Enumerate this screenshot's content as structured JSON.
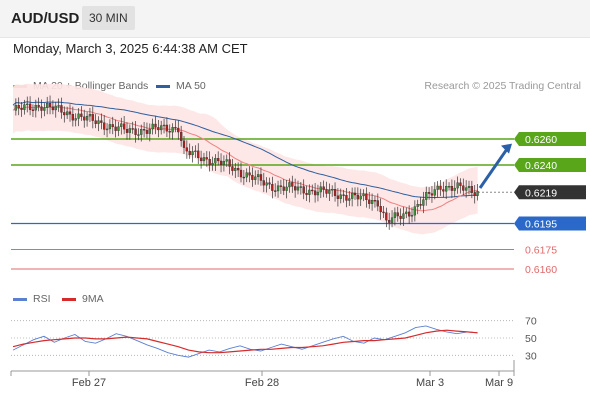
{
  "header": {
    "symbol": "AUD/USD",
    "timeframe": "30 MIN"
  },
  "datetime": "Monday, March 3, 2025 6:44:38 AM CET",
  "legend": {
    "ma20": {
      "label": "MA 20 + Bollinger Bands",
      "color": "#f08080"
    },
    "ma50": {
      "label": "MA 50",
      "color": "#2f5f9e"
    },
    "credit": "Research © 2025 Trading Central"
  },
  "rsi_legend": {
    "rsi": {
      "label": "RSI",
      "color": "#5b7fd1"
    },
    "ma9": {
      "label": "9MA",
      "color": "#d62b2b"
    }
  },
  "colors": {
    "resistance": "#5aa61a",
    "support": "#2a69c9",
    "minor_support": "#e06a6a",
    "current": "#333333",
    "arrow": "#2b5fa8",
    "candle_up": "#3d8b3d",
    "candle_down": "#b02020",
    "band_fill": "#fde4e4"
  },
  "chart_data": [
    {
      "type": "candlestick",
      "ylim": [
        0.615,
        0.629
      ],
      "levels": [
        {
          "value": 0.626,
          "label": "0.6260",
          "kind": "resistance"
        },
        {
          "value": 0.624,
          "label": "0.6240",
          "kind": "resistance"
        },
        {
          "value": 0.6219,
          "label": "0.6219",
          "kind": "current"
        },
        {
          "value": 0.6195,
          "label": "0.6195",
          "kind": "support"
        },
        {
          "value": 0.6175,
          "label": "0.6175",
          "kind": "minor_support"
        },
        {
          "value": 0.616,
          "label": "0.6160",
          "kind": "minor_support"
        }
      ],
      "x_labels": [
        "Feb 27",
        "Feb 28",
        "Mar 3",
        "Mar 9"
      ],
      "trend_arrow": {
        "from": 0.622,
        "to": 0.6258,
        "direction": "up"
      },
      "key_points": [
        {
          "i": 0,
          "close": 0.6282
        },
        {
          "i": 10,
          "close": 0.6286
        },
        {
          "i": 25,
          "close": 0.6276
        },
        {
          "i": 40,
          "close": 0.6266
        },
        {
          "i": 58,
          "close": 0.6269
        },
        {
          "i": 60,
          "close": 0.625
        },
        {
          "i": 75,
          "close": 0.624
        },
        {
          "i": 90,
          "close": 0.6224
        },
        {
          "i": 110,
          "close": 0.6219
        },
        {
          "i": 128,
          "close": 0.6212
        },
        {
          "i": 131,
          "close": 0.6196
        },
        {
          "i": 140,
          "close": 0.6205
        },
        {
          "i": 150,
          "close": 0.6224
        },
        {
          "i": 163,
          "close": 0.622
        }
      ]
    },
    {
      "type": "line",
      "title": "RSI",
      "ylim": [
        20,
        80
      ],
      "levels": [
        70,
        50,
        30
      ],
      "series": [
        {
          "name": "RSI",
          "values": [
            36,
            42,
            48,
            52,
            45,
            50,
            54,
            46,
            44,
            49,
            55,
            52,
            47,
            42,
            38,
            33,
            30,
            28,
            32,
            36,
            34,
            38,
            41,
            37,
            35,
            39,
            43,
            40,
            37,
            41,
            45,
            49,
            52,
            46,
            44,
            50,
            48,
            52,
            56,
            62,
            64,
            60,
            57,
            55,
            57,
            56
          ]
        },
        {
          "name": "9MA",
          "values": [
            40,
            43,
            45,
            47,
            48,
            49,
            50,
            50,
            49,
            49,
            50,
            51,
            50,
            49,
            46,
            43,
            40,
            36,
            34,
            33,
            33,
            34,
            35,
            36,
            37,
            37,
            38,
            39,
            39,
            40,
            41,
            43,
            45,
            46,
            47,
            47,
            48,
            49,
            50,
            53,
            56,
            58,
            59,
            58,
            57,
            56
          ]
        }
      ]
    }
  ]
}
